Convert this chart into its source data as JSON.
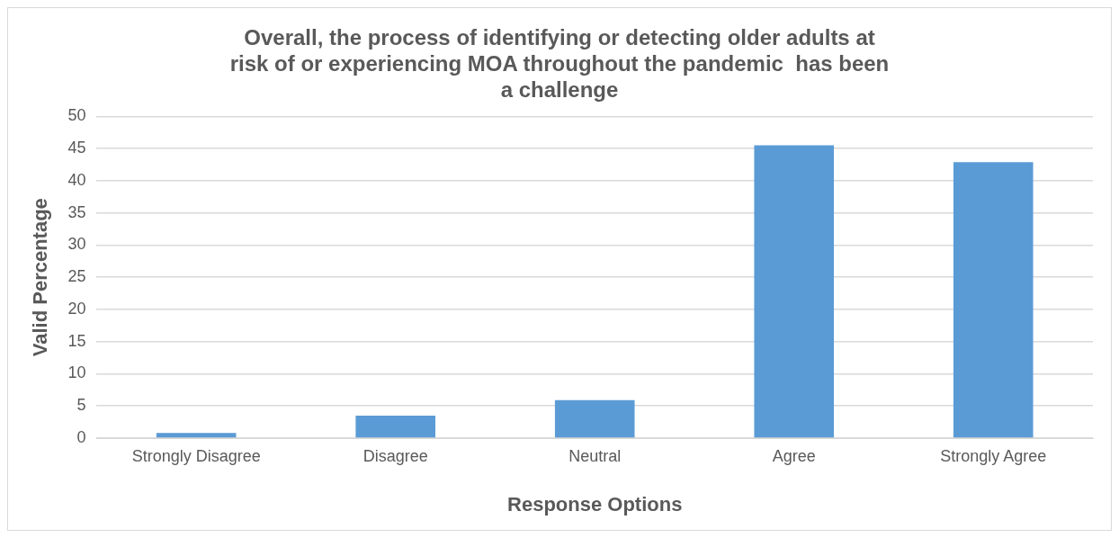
{
  "chart_data": {
    "type": "bar",
    "title": [
      "Overall, the process of identifying or detecting older adults at",
      "risk of or experiencing MOA throughout the pandemic  has been",
      "a challenge"
    ],
    "xlabel": "Response Options",
    "ylabel": "Valid Percentage",
    "categories": [
      "Strongly Disagree",
      "Disagree",
      "Neutral",
      "Agree",
      "Strongly Agree"
    ],
    "values": [
      0.8,
      3.5,
      5.9,
      45.5,
      42.9
    ],
    "color": "#5b9bd5",
    "ylim": [
      0,
      50
    ],
    "yticks": [
      0,
      5,
      10,
      15,
      20,
      25,
      30,
      35,
      40,
      45,
      50
    ],
    "grid": "y",
    "legend": false
  }
}
